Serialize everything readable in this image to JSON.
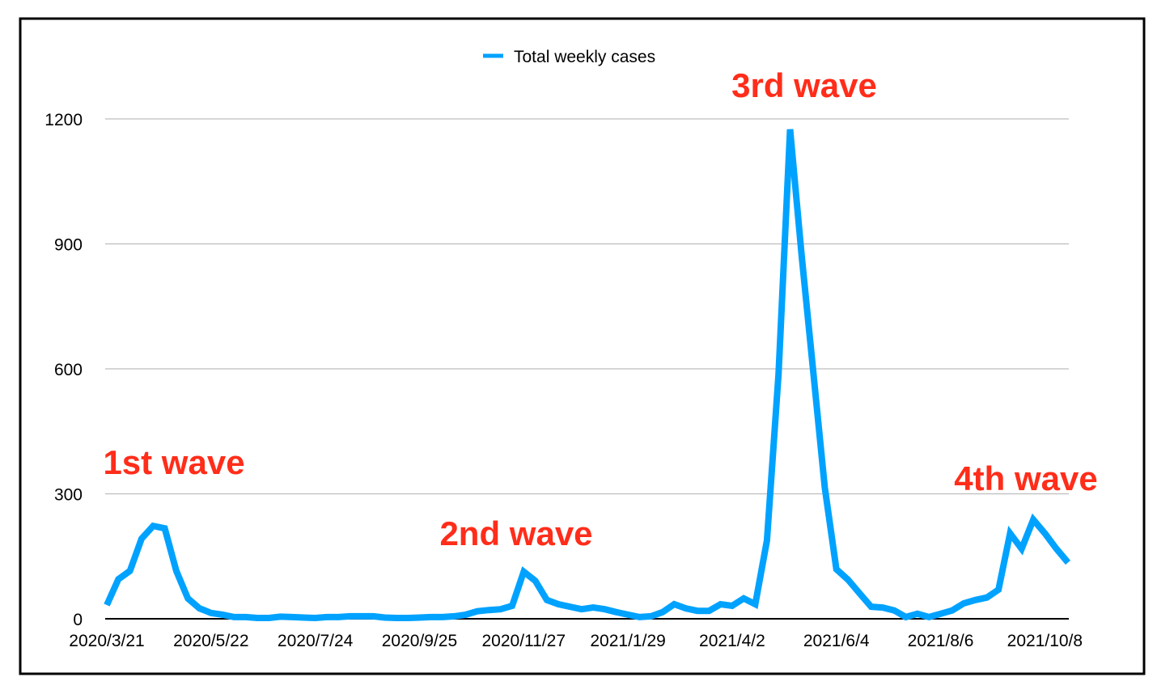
{
  "chart_data": {
    "type": "line",
    "title": "",
    "xlabel": "",
    "ylabel": "",
    "ylim": [
      0,
      1200
    ],
    "y_ticks": [
      "0",
      "300",
      "600",
      "900",
      "1200"
    ],
    "y_tick_values": [
      0,
      300,
      600,
      900,
      1200
    ],
    "grid": true,
    "legend_position": "top-center",
    "x_start": "2020/3/21",
    "x_interval": "weekly",
    "x_tick_labels": [
      "2020/3/21",
      "2020/5/22",
      "2020/7/24",
      "2020/9/25",
      "2020/11/27",
      "2021/1/29",
      "2021/4/2",
      "2021/6/4",
      "2021/8/6",
      "2021/10/8"
    ],
    "x_tick_every": 9,
    "series": [
      {
        "name": "Total weekly cases",
        "color": "#00a2ff",
        "values": [
          33,
          95,
          115,
          192,
          223,
          217,
          115,
          49,
          25,
          14,
          10,
          4,
          4,
          2,
          2,
          5,
          4,
          3,
          2,
          4,
          4,
          6,
          6,
          6,
          3,
          2,
          2,
          3,
          4,
          4,
          6,
          10,
          18,
          21,
          23,
          31,
          113,
          91,
          45,
          35,
          29,
          23,
          27,
          23,
          16,
          10,
          4,
          6,
          16,
          35,
          25,
          19,
          19,
          35,
          31,
          49,
          35,
          188,
          586,
          1175,
          872,
          594,
          315,
          119,
          94,
          61,
          29,
          27,
          20,
          4,
          12,
          4,
          12,
          20,
          37,
          45,
          51,
          70,
          205,
          168,
          238,
          205,
          168,
          135
        ]
      }
    ],
    "annotations": [
      {
        "text": "1st wave",
        "color": "#ff2d1a"
      },
      {
        "text": "2nd wave",
        "color": "#ff2d1a"
      },
      {
        "text": "3rd wave",
        "color": "#ff2d1a"
      },
      {
        "text": "4th wave",
        "color": "#ff2d1a"
      }
    ]
  }
}
